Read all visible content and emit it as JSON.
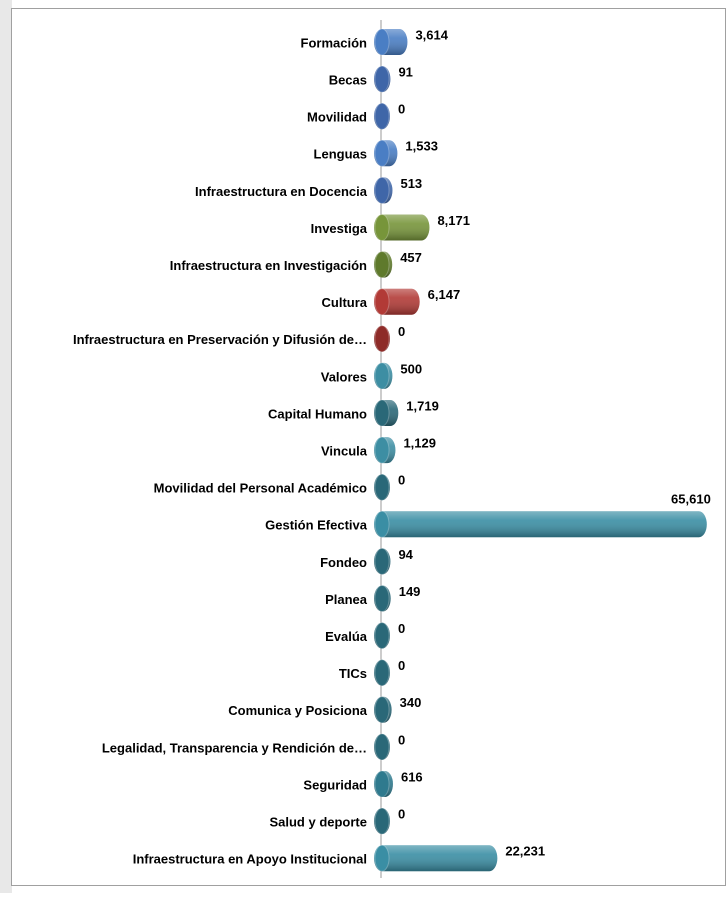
{
  "chart_data": {
    "type": "bar",
    "orientation": "horizontal",
    "categories": [
      "Formación",
      "Becas",
      "Movilidad",
      "Lenguas",
      "Infraestructura en Docencia",
      "Investiga",
      "Infraestructura en Investigación",
      "Cultura",
      "Infraestructura en Preservación y Difusión de…",
      "Valores",
      "Capital Humano",
      "Vincula",
      "Movilidad del Personal Académico",
      "Gestión Efectiva",
      "Fondeo",
      "Planea",
      "Evalúa",
      "TICs",
      "Comunica y Posiciona",
      "Legalidad, Transparencia y Rendición de…",
      "Seguridad",
      "Salud y deporte",
      "Infraestructura en Apoyo Institucional"
    ],
    "values": [
      3614,
      91,
      0,
      1533,
      513,
      8171,
      457,
      6147,
      0,
      500,
      1719,
      1129,
      0,
      65610,
      94,
      149,
      0,
      0,
      340,
      0,
      616,
      0,
      22231
    ],
    "value_labels": [
      "3,614",
      "91",
      "0",
      "1,533",
      "513",
      "8,171",
      "457",
      "6,147",
      "0",
      "500",
      "1,719",
      "1,129",
      "0",
      "65,610",
      "94",
      "149",
      "0",
      "0",
      "340",
      "0",
      "616",
      "0",
      "22,231"
    ],
    "colors": [
      "#4a7ec4",
      "#3f66a8",
      "#3f66a8",
      "#4a7ec4",
      "#3f66a8",
      "#77953a",
      "#5f7a2c",
      "#b23a36",
      "#8e2b28",
      "#3d8ea3",
      "#2a6878",
      "#3d8ea3",
      "#2a6878",
      "#3a8ea4",
      "#2a6878",
      "#2a6878",
      "#2a6878",
      "#2a6878",
      "#2a6878",
      "#2a6878",
      "#2f7a8e",
      "#2a6878",
      "#3a8ea4"
    ],
    "xlim": [
      0,
      70000
    ]
  }
}
